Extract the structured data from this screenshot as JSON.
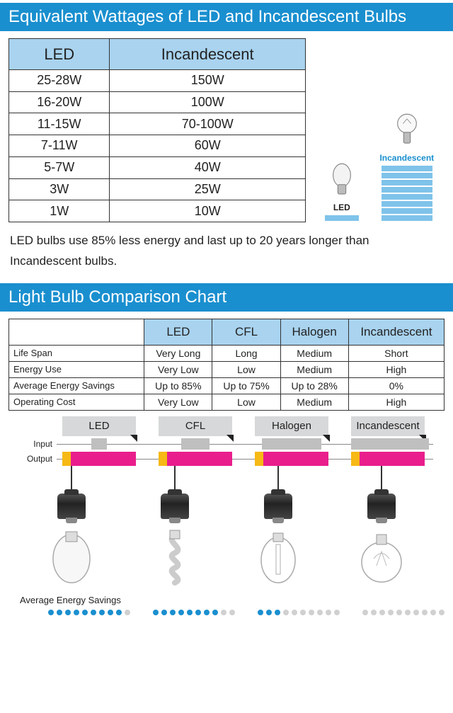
{
  "colors": {
    "header_bg": "#1a8fcf",
    "cell_blue": "#a9d3ef",
    "bar_blue": "#7fc3ea",
    "tab_gray": "#d7d8d9",
    "input_gray": "#bfbfbf",
    "output_pink": "#e91e8c",
    "output_warm": "#f6b915",
    "dot_fill": "#1a8fcf",
    "dot_empty": "#d0d0d0",
    "incand_label": "#1a8fcf"
  },
  "header1": "Equivalent Wattages of LED and Incandescent Bulbs",
  "wattage_table": {
    "columns": [
      "LED",
      "Incandescent"
    ],
    "rows": [
      [
        "25-28W",
        "150W"
      ],
      [
        "16-20W",
        "100W"
      ],
      [
        "11-15W",
        "70-100W"
      ],
      [
        "7-11W",
        "60W"
      ],
      [
        "5-7W",
        "40W"
      ],
      [
        "3W",
        "25W"
      ],
      [
        "1W",
        "10W"
      ]
    ]
  },
  "side_labels": {
    "led": "LED",
    "incand": "Incandescent"
  },
  "caption": "LED bulbs use 85% less energy and last up to 20 years longer than Incandescent bulbs.",
  "header2": "Light Bulb Comparison Chart",
  "comp_table": {
    "columns": [
      "",
      "LED",
      "CFL",
      "Halogen",
      "Incandescent"
    ],
    "rows": [
      [
        "Life Span",
        "Very Long",
        "Long",
        "Medium",
        "Short"
      ],
      [
        "Energy Use",
        "Very Low",
        "Low",
        "Medium",
        "High"
      ],
      [
        "Average Energy Savings",
        "Up to 85%",
        "Up to 75%",
        "Up to 28%",
        "0%"
      ],
      [
        "Operating Cost",
        "Very Low",
        "Low",
        "Medium",
        "High"
      ]
    ]
  },
  "io_chart": {
    "types": [
      "LED",
      "CFL",
      "Halogen",
      "Incandescent"
    ],
    "input_label": "Input",
    "output_label": "Output",
    "input_widths": [
      22,
      40,
      84,
      110
    ],
    "output_widths": [
      104,
      104,
      104,
      104
    ]
  },
  "savings_label": "Average Energy Savings",
  "savings_dots": {
    "total": 10,
    "filled": [
      9,
      8,
      3,
      0
    ]
  }
}
